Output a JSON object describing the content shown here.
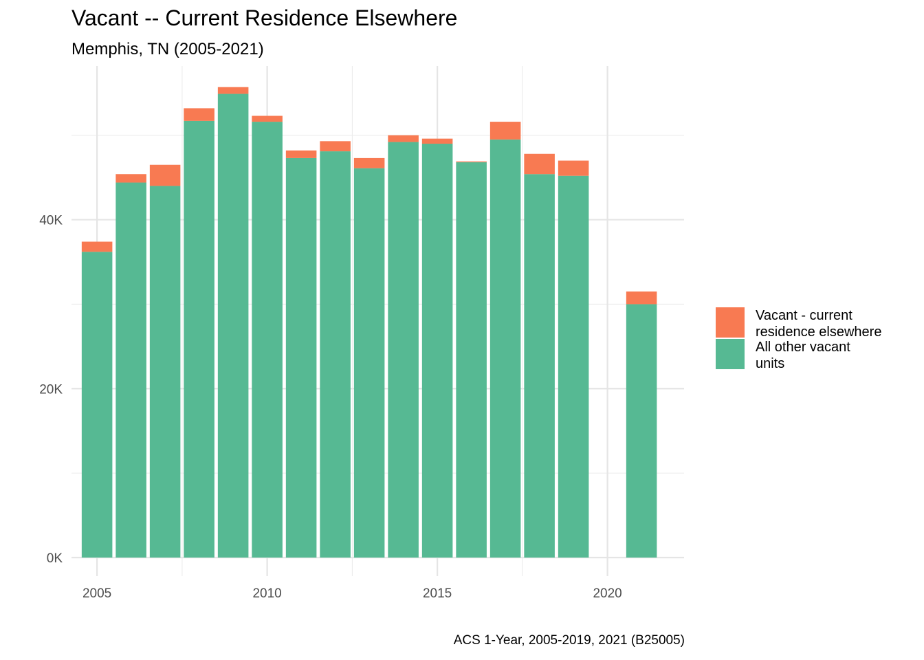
{
  "chart_data": {
    "type": "bar",
    "stacked": true,
    "title": "Vacant -- Current Residence Elsewhere",
    "subtitle": "Memphis, TN (2005-2021)",
    "caption": "ACS 1-Year, 2005-2019, 2021 (B25005)",
    "xlabel": "",
    "ylabel": "",
    "x": [
      2005,
      2006,
      2007,
      2008,
      2009,
      2010,
      2011,
      2012,
      2013,
      2014,
      2015,
      2016,
      2017,
      2018,
      2019,
      2021
    ],
    "series": [
      {
        "name": "All other vacant units",
        "color": "#56B993",
        "values": [
          36200,
          44400,
          44000,
          51700,
          54900,
          51600,
          47300,
          48100,
          46100,
          49200,
          49000,
          46800,
          49500,
          45400,
          45200,
          30000
        ]
      },
      {
        "name": "Vacant - current residence elsewhere",
        "color": "#F87A52",
        "values": [
          1200,
          1000,
          2500,
          1500,
          800,
          700,
          900,
          1200,
          1200,
          800,
          600,
          100,
          2100,
          2400,
          1800,
          1500
        ]
      }
    ],
    "xlim": [
      2004.25,
      2022.25
    ],
    "ylim": [
      -2200,
      58200
    ],
    "x_ticks": [
      {
        "value": 2005,
        "label": "2005"
      },
      {
        "value": 2010,
        "label": "2010"
      },
      {
        "value": 2015,
        "label": "2015"
      },
      {
        "value": 2020,
        "label": "2020"
      }
    ],
    "y_ticks": [
      {
        "value": 0,
        "label": "0K"
      },
      {
        "value": 20000,
        "label": "20K"
      },
      {
        "value": 40000,
        "label": "40K"
      }
    ],
    "x_minor_ticks": [
      2007.5,
      2012.5,
      2017.5
    ],
    "y_minor_ticks": [
      10000,
      30000,
      50000
    ],
    "grid": true,
    "legend_position": "right",
    "legend": [
      {
        "label_lines": [
          "Vacant - current",
          "residence elsewhere"
        ],
        "color": "#F87A52"
      },
      {
        "label_lines": [
          "All other vacant",
          "units"
        ],
        "color": "#56B993"
      }
    ]
  }
}
